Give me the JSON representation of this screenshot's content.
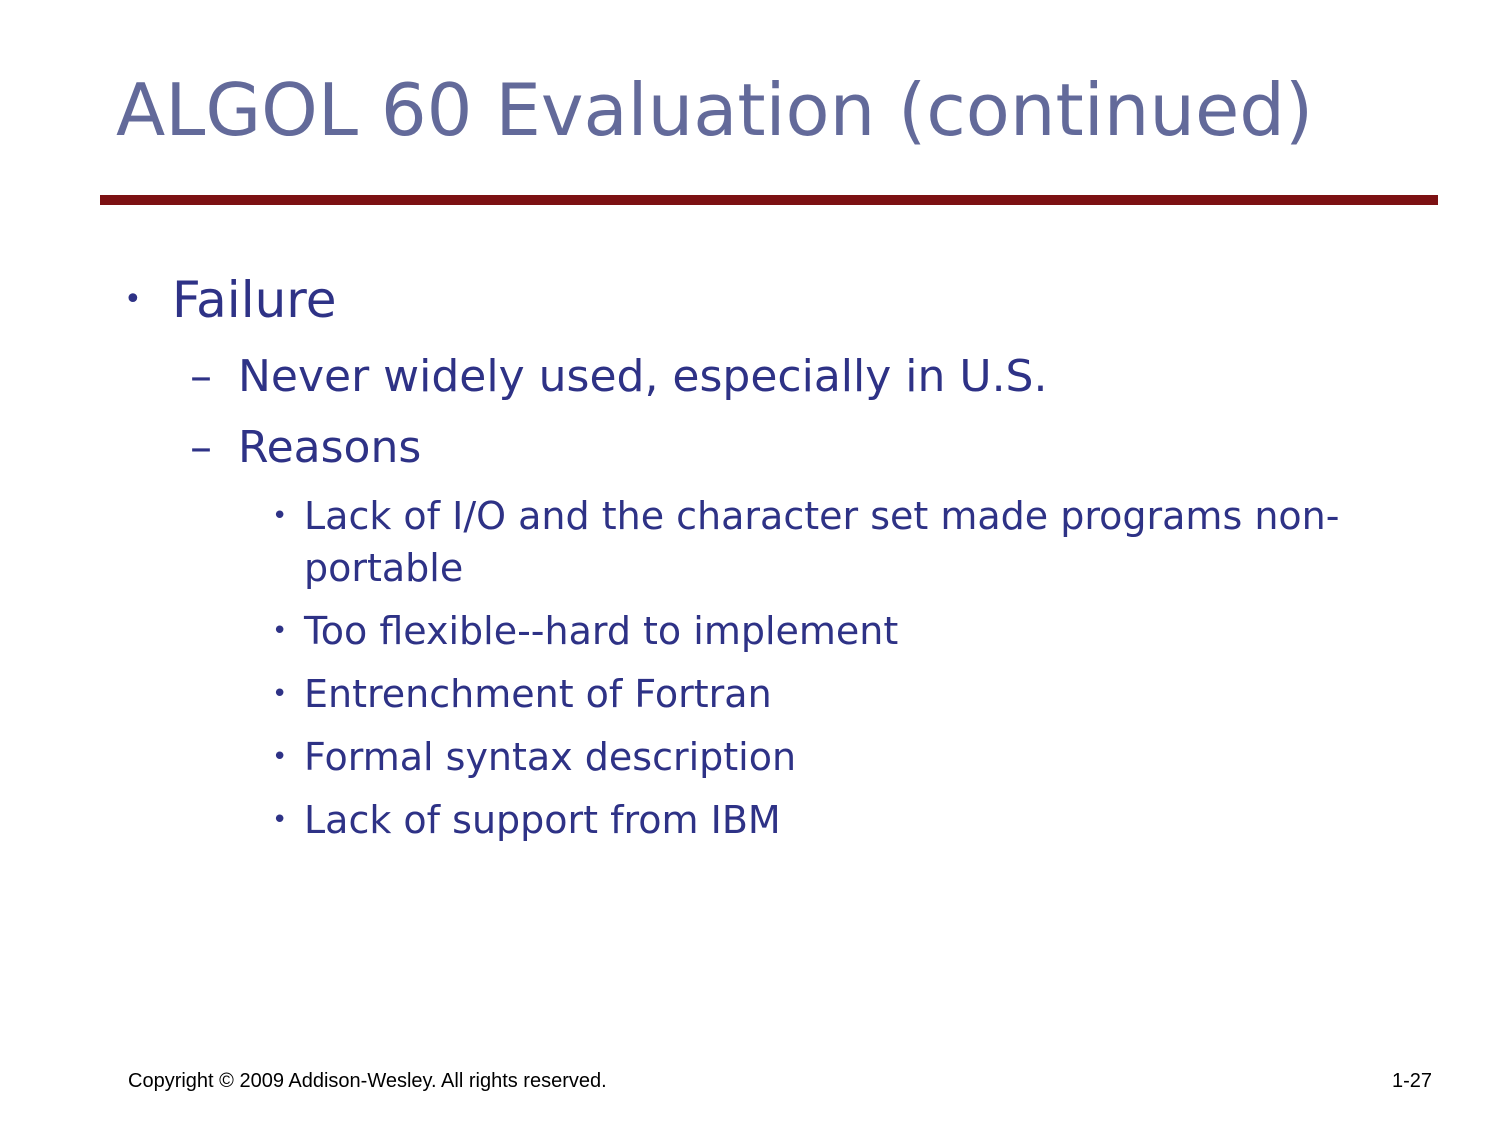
{
  "slide": {
    "title": "ALGOL 60 Evaluation (continued)",
    "colors": {
      "title": "#636a9a",
      "rule": "#7c1113",
      "body_text": "#2e3286"
    },
    "bullets": [
      {
        "marker": "•",
        "text": "Failure",
        "subitems": [
          {
            "marker": "–",
            "text": "Never widely used, especially in U.S."
          },
          {
            "marker": "–",
            "text": "Reasons",
            "subitems": [
              {
                "marker": "•",
                "text": "Lack of I/O and the character set made programs non-portable"
              },
              {
                "marker": "•",
                "text": "Too flexible--hard to implement"
              },
              {
                "marker": "•",
                "text": "Entrenchment of Fortran"
              },
              {
                "marker": "•",
                "text": "Formal syntax description"
              },
              {
                "marker": "•",
                "text": "Lack of support from IBM"
              }
            ]
          }
        ]
      }
    ],
    "footer": {
      "copyright": "Copyright © 2009 Addison-Wesley. All rights reserved.",
      "page_number": "1-27"
    }
  }
}
